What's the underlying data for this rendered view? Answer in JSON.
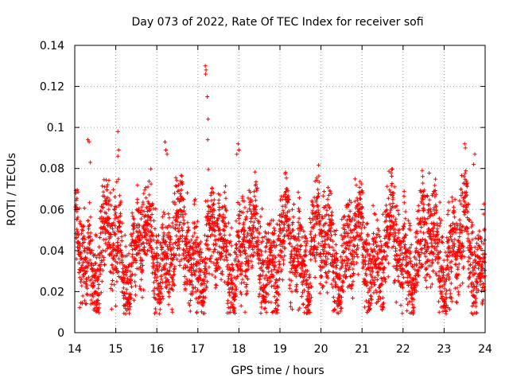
{
  "chart_data": {
    "type": "scatter",
    "title": "Day 073 of 2022, Rate Of TEC Index for receiver sofi",
    "xlabel": "GPS time / hours",
    "ylabel": "ROTI / TECUs",
    "xlim": [
      14,
      24
    ],
    "ylim": [
      0,
      0.14
    ],
    "xticks": [
      "14",
      "15",
      "16",
      "17",
      "18",
      "19",
      "20",
      "21",
      "22",
      "23",
      "24"
    ],
    "yticks": [
      "0",
      "0.02",
      "0.04",
      "0.06",
      "0.08",
      "0.1",
      "0.12",
      "0.14"
    ],
    "grid": true,
    "marker": "+",
    "color": "#ff0000",
    "sampling_interval_hours": 0.0025,
    "base_level": 0.04,
    "spread": 0.015,
    "notable_points": [
      {
        "x": 14.32,
        "y": 0.094
      },
      {
        "x": 14.35,
        "y": 0.093
      },
      {
        "x": 14.38,
        "y": 0.083
      },
      {
        "x": 15.05,
        "y": 0.098
      },
      {
        "x": 15.07,
        "y": 0.089
      },
      {
        "x": 15.05,
        "y": 0.086
      },
      {
        "x": 16.2,
        "y": 0.093
      },
      {
        "x": 16.22,
        "y": 0.089
      },
      {
        "x": 16.25,
        "y": 0.087
      },
      {
        "x": 17.18,
        "y": 0.13
      },
      {
        "x": 17.2,
        "y": 0.128
      },
      {
        "x": 17.19,
        "y": 0.126
      },
      {
        "x": 17.23,
        "y": 0.115
      },
      {
        "x": 17.25,
        "y": 0.104
      },
      {
        "x": 17.24,
        "y": 0.094
      },
      {
        "x": 17.98,
        "y": 0.092
      },
      {
        "x": 18.0,
        "y": 0.089
      },
      {
        "x": 17.95,
        "y": 0.087
      },
      {
        "x": 23.5,
        "y": 0.092
      },
      {
        "x": 23.52,
        "y": 0.09
      },
      {
        "x": 23.75,
        "y": 0.087
      },
      {
        "x": 23.72,
        "y": 0.082
      },
      {
        "x": 19.45,
        "y": 0.011
      },
      {
        "x": 19.48,
        "y": 0.012
      },
      {
        "x": 18.15,
        "y": 0.01
      },
      {
        "x": 23.7,
        "y": 0.009
      },
      {
        "x": 15.0,
        "y": 0.013
      }
    ]
  }
}
